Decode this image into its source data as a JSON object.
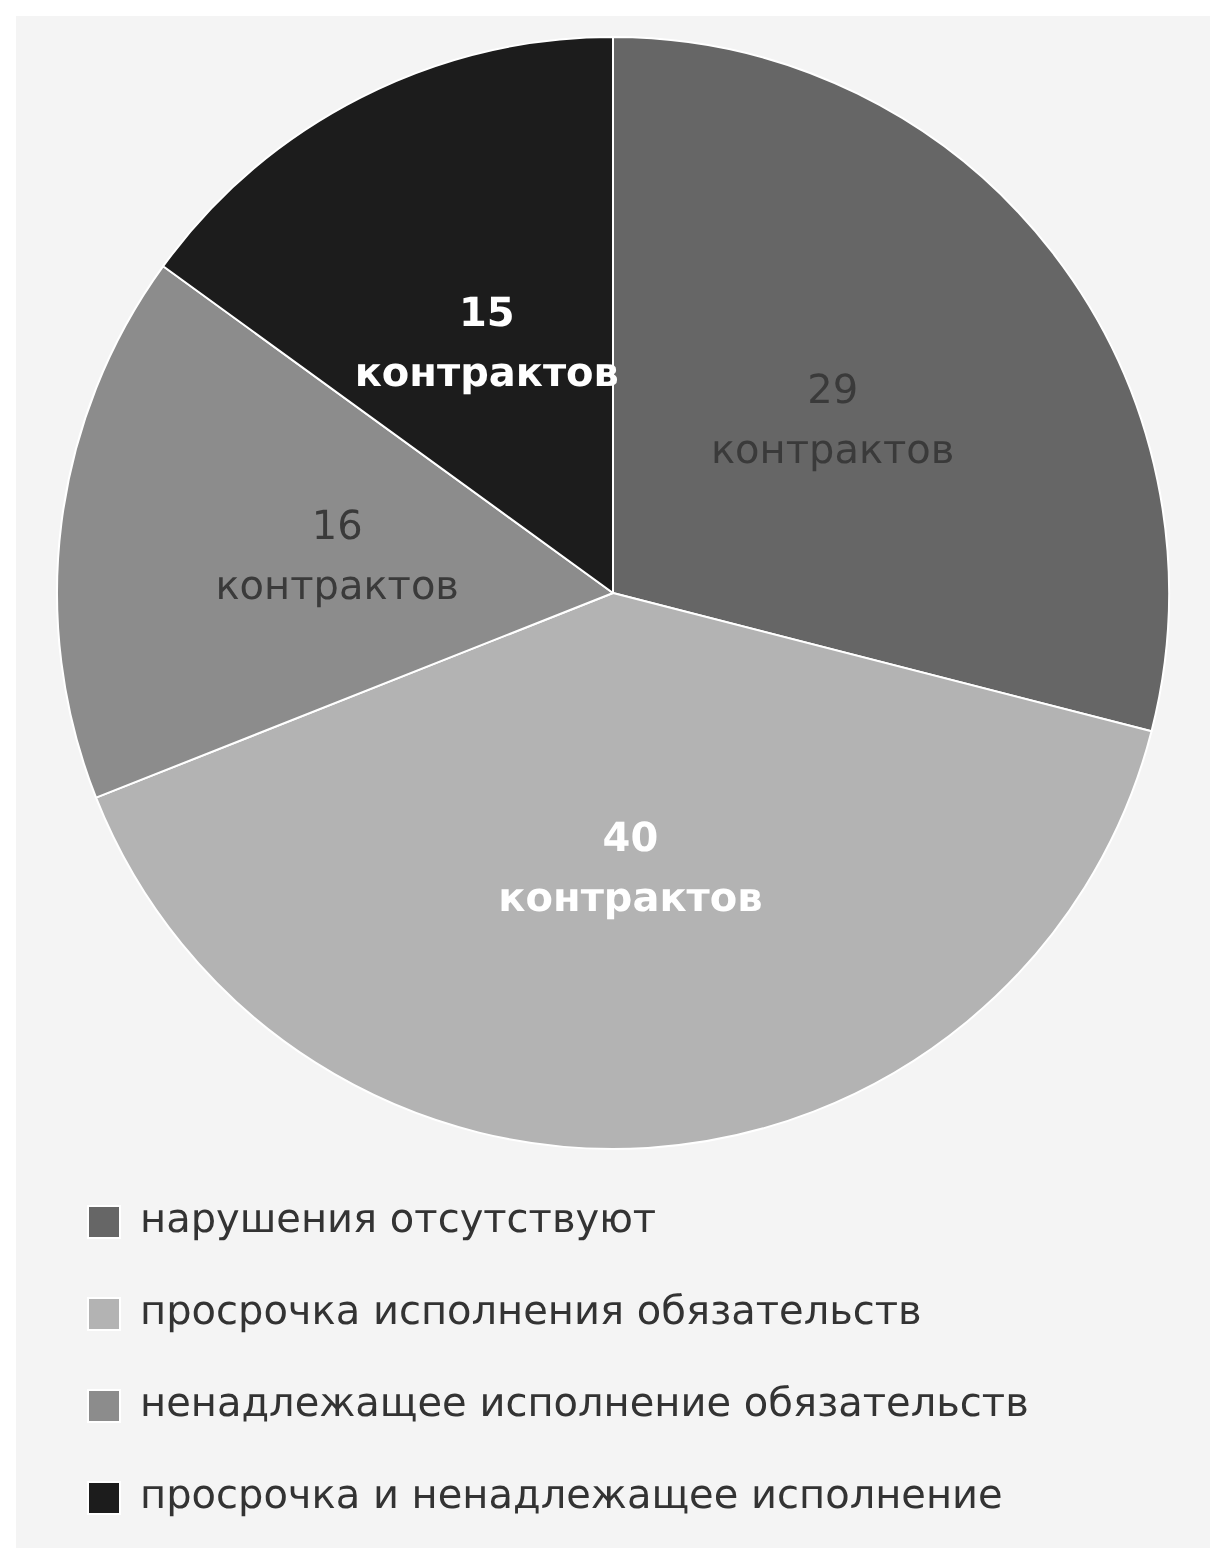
{
  "chart_data": {
    "type": "pie",
    "categories": [
      "нарушения отсутствуют",
      "просрочка исполнения обязательств",
      "ненадлежащее исполнение обязательств",
      "просрочка и ненадлежащее исполнение"
    ],
    "values": [
      29,
      40,
      16,
      15
    ],
    "colors": [
      "#666666",
      "#b3b3b3",
      "#8c8c8c",
      "#1c1c1c"
    ],
    "value_labels": [
      "29 контрактов",
      "40 контрактов",
      "16 контрактов",
      "15 контрактов"
    ],
    "legend": "bottom"
  }
}
